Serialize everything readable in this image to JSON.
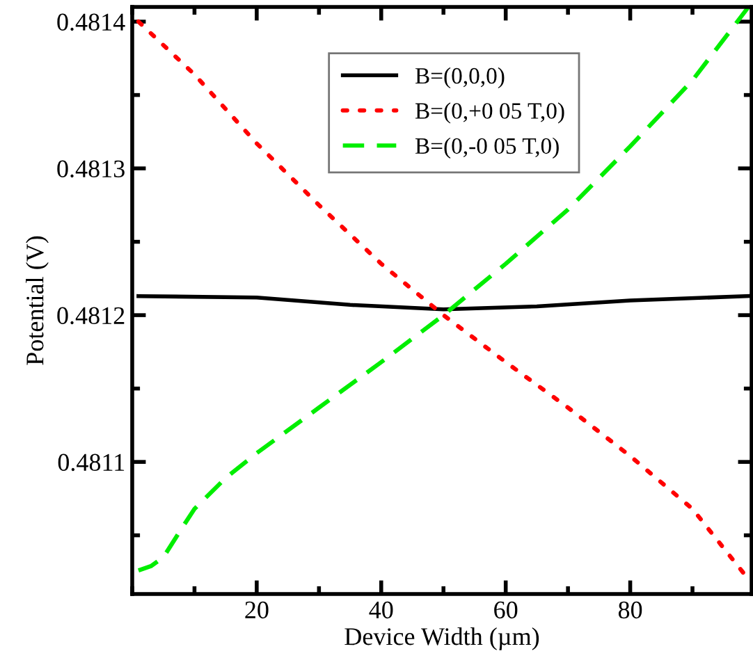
{
  "chart_data": {
    "type": "line",
    "xlabel": "Device Width (µm)",
    "ylabel": "Potential (V)",
    "xlim": [
      0,
      99.5
    ],
    "ylim": [
      0.48101,
      0.48141
    ],
    "xticks": [
      20,
      40,
      60,
      80
    ],
    "yticks": [
      0.4811,
      0.4812,
      0.4813,
      0.4814
    ],
    "legend": "top",
    "grid": false,
    "series": [
      {
        "name": "B=(0,0,0)",
        "color": "#000000",
        "line_style": "solid",
        "x": [
          1,
          20,
          35,
          50,
          65,
          80,
          99
        ],
        "values": [
          0.481213,
          0.481212,
          0.481207,
          0.481204,
          0.481206,
          0.48121,
          0.481213
        ]
      },
      {
        "name": "B=(0,+0 05 T,0)",
        "color": "#ff0000",
        "line_style": "dotted",
        "x": [
          1,
          10,
          20,
          30,
          40,
          50,
          60,
          70,
          80,
          90,
          99
        ],
        "values": [
          0.4814,
          0.481364,
          0.481317,
          0.481275,
          0.481235,
          0.4812,
          0.481168,
          0.481137,
          0.481104,
          0.481068,
          0.48102
        ]
      },
      {
        "name": "B=(0,-0 05 T,0)",
        "color": "#00ee00",
        "line_style": "dashed",
        "x": [
          1,
          3,
          5,
          8,
          10,
          15,
          20,
          30,
          40,
          50,
          60,
          70,
          80,
          90,
          99
        ],
        "values": [
          0.481026,
          0.481029,
          0.481035,
          0.481055,
          0.481068,
          0.481089,
          0.481106,
          0.481137,
          0.481168,
          0.4812,
          0.481235,
          0.481272,
          0.481315,
          0.48136,
          0.48141
        ]
      }
    ]
  }
}
